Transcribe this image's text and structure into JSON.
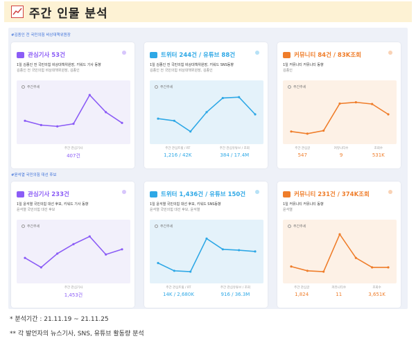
{
  "header": {
    "title": "주간 인물 분석"
  },
  "sections": [
    {
      "label": "#김종인 전 국민의힘 비상대책위원장"
    },
    {
      "label": "#윤석열 국민의힘 대선 후보"
    }
  ],
  "cards": [
    {
      "title": "관심기사 53건",
      "color": "#8b5cf6",
      "bg": "#f2f0fb",
      "sub1": "1일 김종인 전 국민의힘 비상대책위원장, 키워드 기사 동향",
      "sub2": "김종인 전 국민의힘 비상대책위원장, 김종인",
      "trend": "주간추세",
      "values": [
        35,
        25,
        22,
        28,
        95,
        55,
        30
      ],
      "stats": [
        {
          "label": "주간 관심기사",
          "value": "407건"
        }
      ]
    },
    {
      "title": "트위터 244건 / 유튜브 88건",
      "color": "#2ea8e6",
      "bg": "#e4f2fa",
      "sub1": "1일 김종인 전 국민의힘 비상대책위원장, 키워드 SNS동향",
      "sub2": "김종인 전 국민의힘 비상대책위원장, 김종인",
      "trend": "주간추세",
      "values": [
        40,
        35,
        10,
        55,
        88,
        90,
        50
      ],
      "stats": [
        {
          "label": "주간 관심트윗 / RT",
          "value": "1,216 / 42K"
        },
        {
          "label": "주간 관심유튜브 / 조회",
          "value": "384 / 17.4M"
        }
      ]
    },
    {
      "title": "커뮤니티 84건 / 83K조회",
      "color": "#ef7d2a",
      "bg": "#fdf1e6",
      "sub1": "1일 커뮤니티 커뮤니티 동향",
      "sub2": "김종인",
      "trend": "주간추세",
      "values": [
        10,
        5,
        12,
        75,
        78,
        74,
        50
      ],
      "stats": [
        {
          "label": "주간 관심글",
          "value": "547"
        },
        {
          "label": "커뮤니티수",
          "value": "9"
        },
        {
          "label": "조회수",
          "value": "531K"
        }
      ]
    },
    {
      "title": "관심기사 233건",
      "color": "#8b5cf6",
      "bg": "#f2f0fb",
      "sub1": "1일 윤석열 국민의힘 대선 후보, 키워드 기사 동향",
      "sub2": "윤석열 국민의힘 대선 후보",
      "trend": "주간추세",
      "values": [
        40,
        18,
        50,
        72,
        90,
        48,
        60
      ],
      "stats": [
        {
          "label": "주간 관심기사",
          "value": "1,453건"
        }
      ]
    },
    {
      "title": "트위터 1,436건 / 유튜브 150건",
      "color": "#2ea8e6",
      "bg": "#e4f2fa",
      "sub1": "1일 윤석열 국민의힘 대선 후보, 키워드 SNS동향",
      "sub2": "윤석열 국민의힘 대선 후보, 윤석열",
      "trend": "주간추세",
      "values": [
        28,
        10,
        8,
        85,
        60,
        58,
        55
      ],
      "stats": [
        {
          "label": "주간 관심트윗 / RT",
          "value": "14K / 2,680K"
        },
        {
          "label": "주간 관심유튜브 / 조회",
          "value": "916 / 36.3M"
        }
      ]
    },
    {
      "title": "커뮤니티 231건 / 374K조회",
      "color": "#ef7d2a",
      "bg": "#fdf1e6",
      "sub1": "1일 커뮤니티 커뮤니티 동향",
      "sub2": "윤석열",
      "trend": "주간추세",
      "values": [
        20,
        10,
        8,
        95,
        40,
        18,
        18
      ],
      "stats": [
        {
          "label": "주간 관심글",
          "value": "1,824"
        },
        {
          "label": "커뮤니티수",
          "value": "11"
        },
        {
          "label": "조회수",
          "value": "3,651K"
        }
      ]
    }
  ],
  "footnotes": {
    "period": "* 분석기간 : 21.11.19 ~ 21.11.25",
    "note": "** 각 발언자의 뉴스기사, SNS, 유튜브 활동량 분석"
  }
}
